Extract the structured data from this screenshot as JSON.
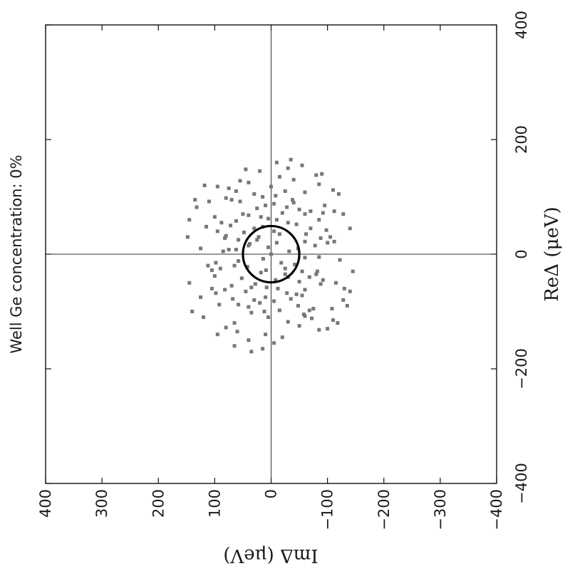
{
  "chart_data": {
    "type": "scatter",
    "title": "Well Ge concentration: 0%",
    "xlabel": "ReΔ (μeV)",
    "ylabel": "ImΔ (μeV)",
    "xlim": [
      -400,
      400
    ],
    "ylim": [
      -400,
      400
    ],
    "x_ticks": [
      {
        "value": -400,
        "label": "−400"
      },
      {
        "value": -200,
        "label": "−200"
      },
      {
        "value": 0,
        "label": "0"
      },
      {
        "value": 200,
        "label": "200"
      },
      {
        "value": 400,
        "label": "400"
      }
    ],
    "y_ticks": [
      {
        "value": 400,
        "label": "400"
      },
      {
        "value": 300,
        "label": "300"
      },
      {
        "value": 200,
        "label": "200"
      },
      {
        "value": 100,
        "label": "100"
      },
      {
        "value": 0,
        "label": "0"
      },
      {
        "value": -100,
        "label": "−100"
      },
      {
        "value": -200,
        "label": "−200"
      },
      {
        "value": -300,
        "label": "−300"
      },
      {
        "value": -400,
        "label": "−400"
      }
    ],
    "grid": false,
    "reference_lines": {
      "x": 0,
      "y": 0
    },
    "orientation": "rotated 90° counter-clockwise",
    "circle": {
      "center": [
        0,
        0
      ],
      "radius": 50,
      "color": "#000000"
    },
    "marker_color": "#777777",
    "series": [
      {
        "points": [
          [
            0,
            0
          ],
          [
            12,
            5
          ],
          [
            -8,
            14
          ],
          [
            20,
            -10
          ],
          [
            -15,
            -18
          ],
          [
            30,
            22
          ],
          [
            -28,
            9
          ],
          [
            5,
            -32
          ],
          [
            40,
            -5
          ],
          [
            -35,
            -25
          ],
          [
            18,
            38
          ],
          [
            -22,
            42
          ],
          [
            48,
            15
          ],
          [
            -45,
            -8
          ],
          [
            10,
            -48
          ],
          [
            55,
            -30
          ],
          [
            -52,
            28
          ],
          [
            25,
            58
          ],
          [
            -30,
            -55
          ],
          [
            62,
            5
          ],
          [
            -60,
            -12
          ],
          [
            35,
            -62
          ],
          [
            -20,
            65
          ],
          [
            68,
            40
          ],
          [
            -65,
            45
          ],
          [
            45,
            -70
          ],
          [
            -40,
            -68
          ],
          [
            72,
            -20
          ],
          [
            -75,
            10
          ],
          [
            8,
            75
          ],
          [
            15,
            -78
          ],
          [
            80,
            25
          ],
          [
            -78,
            -35
          ],
          [
            50,
            72
          ],
          [
            -55,
            70
          ],
          [
            78,
            -50
          ],
          [
            -72,
            -55
          ],
          [
            88,
            -5
          ],
          [
            -85,
            20
          ],
          [
            28,
            -88
          ],
          [
            -25,
            90
          ],
          [
            92,
            55
          ],
          [
            -90,
            -48
          ],
          [
            60,
            -85
          ],
          [
            -62,
            82
          ],
          [
            95,
            -38
          ],
          [
            -98,
            -15
          ],
          [
            40,
            95
          ],
          [
            -45,
            -92
          ],
          [
            100,
            15
          ],
          [
            65,
            18
          ],
          [
            -58,
            35
          ],
          [
            22,
            -60
          ],
          [
            -12,
            58
          ],
          [
            70,
            -60
          ],
          [
            -68,
            -28
          ],
          [
            38,
            48
          ],
          [
            -42,
            52
          ],
          [
            52,
            -45
          ],
          [
            -48,
            -50
          ],
          [
            85,
            10
          ],
          [
            -82,
            -5
          ],
          [
            5,
            85
          ],
          [
            -5,
            -85
          ],
          [
            58,
            62
          ],
          [
            -62,
            -60
          ],
          [
            75,
            -70
          ],
          [
            -78,
            68
          ],
          [
            32,
            80
          ],
          [
            -35,
            -80
          ],
          [
            105,
            30
          ],
          [
            -102,
            35
          ],
          [
            30,
            -105
          ],
          [
            -28,
            105
          ],
          [
            108,
            -60
          ],
          [
            -105,
            -58
          ],
          [
            65,
            100
          ],
          [
            -68,
            98
          ],
          [
            110,
            -25
          ],
          [
            -110,
            5
          ],
          [
            -20,
            112
          ],
          [
            22,
            -112
          ],
          [
            115,
            75
          ],
          [
            -112,
            -72
          ],
          [
            85,
            -95
          ],
          [
            -88,
            92
          ],
          [
            118,
            0
          ],
          [
            -118,
            -30
          ],
          [
            48,
            115
          ],
          [
            -50,
            -115
          ],
          [
            122,
            -85
          ],
          [
            -120,
            65
          ],
          [
            92,
            110
          ],
          [
            -95,
            -108
          ],
          [
            125,
            40
          ],
          [
            -125,
            -50
          ],
          [
            10,
            125
          ],
          [
            -10,
            -122
          ],
          [
            130,
            -40
          ],
          [
            -128,
            80
          ],
          [
            -140,
            10
          ],
          [
            135,
            -15
          ],
          [
            -132,
            -85
          ],
          [
            138,
            -80
          ],
          [
            -60,
            -130
          ],
          [
            105,
            -120
          ],
          [
            -110,
            120
          ],
          [
            70,
            -128
          ],
          [
            -75,
            125
          ],
          [
            145,
            20
          ],
          [
            -145,
            -20
          ],
          [
            150,
            -30
          ],
          [
            -150,
            40
          ],
          [
            -170,
            35
          ],
          [
            140,
            -90
          ],
          [
            -130,
            -100
          ],
          [
            118,
            95
          ],
          [
            -115,
            -110
          ],
          [
            95,
            135
          ],
          [
            -100,
            140
          ],
          [
            60,
            145
          ],
          [
            -65,
            -140
          ],
          [
            128,
            55
          ],
          [
            -135,
            60
          ],
          [
            -90,
            -135
          ],
          [
            82,
            132
          ],
          [
            -80,
            -128
          ],
          [
            112,
            -110
          ],
          [
            -155,
            -5
          ],
          [
            -160,
            65
          ],
          [
            -120,
            -118
          ],
          [
            155,
            -55
          ],
          [
            148,
            45
          ],
          [
            -140,
            95
          ],
          [
            120,
            118
          ],
          [
            -30,
            -145
          ],
          [
            30,
            148
          ],
          [
            45,
            -140
          ],
          [
            -50,
            145
          ],
          [
            160,
            -10
          ],
          [
            -165,
            15
          ],
          [
            165,
            -35
          ],
          [
            -60,
            105
          ],
          [
            75,
            -112
          ],
          [
            -95,
            -75
          ],
          [
            98,
            80
          ],
          [
            -88,
            58
          ],
          [
            110,
            62
          ],
          [
            -108,
            -60
          ],
          [
            42,
            -98
          ],
          [
            -38,
            100
          ],
          [
            20,
            -100
          ],
          [
            -15,
            98
          ],
          [
            102,
            -8
          ],
          [
            -100,
            12
          ],
          [
            90,
            -40
          ],
          [
            -92,
            40
          ],
          [
            55,
            88
          ],
          [
            -52,
            -88
          ],
          [
            70,
            50
          ],
          [
            -70,
            -45
          ],
          [
            45,
            30
          ],
          [
            -40,
            -30
          ],
          [
            15,
            40
          ],
          [
            -18,
            -42
          ],
          [
            35,
            -15
          ],
          [
            -32,
            18
          ],
          [
            25,
            25
          ],
          [
            -25,
            -25
          ],
          [
            60,
            -10
          ],
          [
            -58,
            8
          ],
          [
            8,
            62
          ],
          [
            -6,
            -60
          ],
          [
            82,
            -28
          ],
          [
            -80,
            30
          ],
          [
            28,
            82
          ],
          [
            -30,
            -82
          ],
          [
            95,
            70
          ],
          [
            -98,
            -68
          ],
          [
            72,
            -92
          ]
        ]
      }
    ]
  }
}
